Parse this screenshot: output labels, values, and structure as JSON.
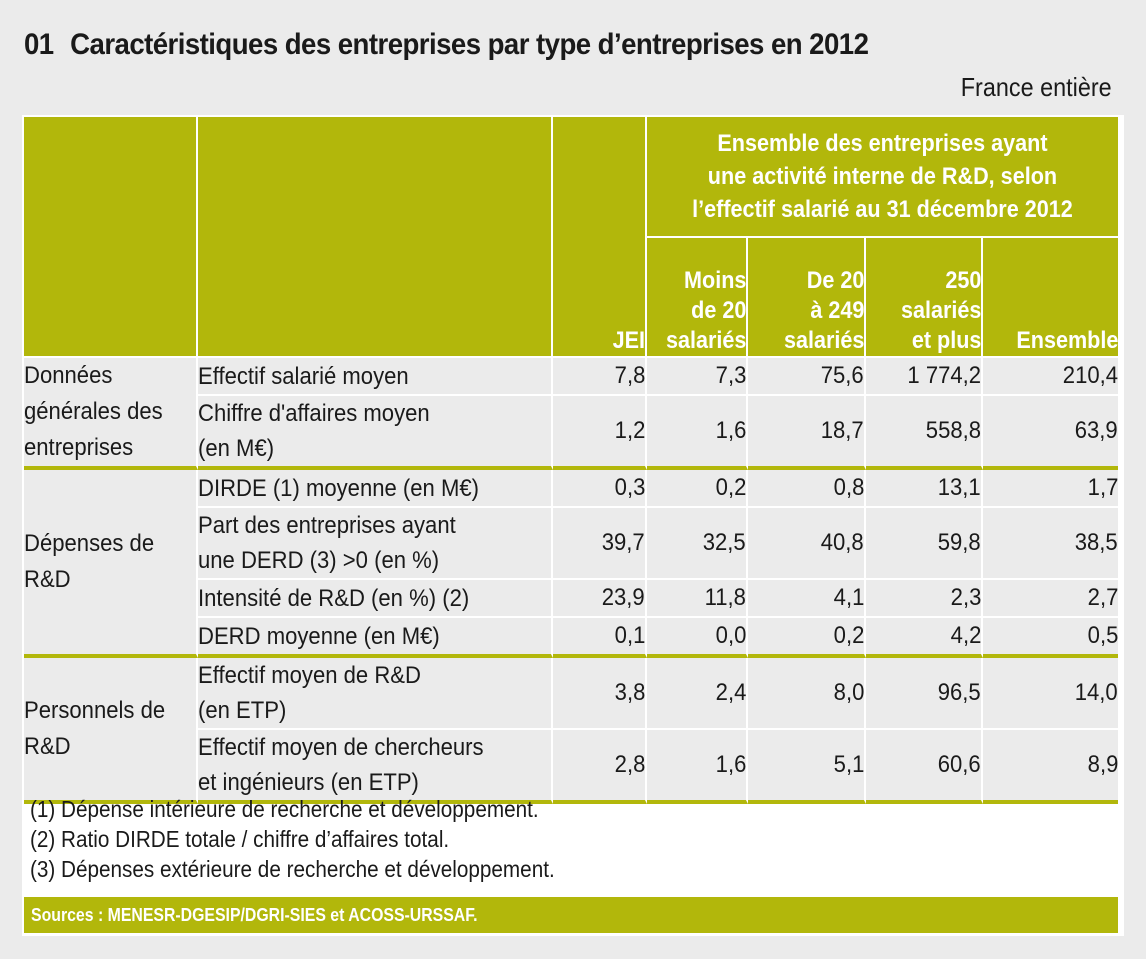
{
  "header": {
    "number": "01",
    "title": "Caractéristiques des entreprises par type d’entreprises en 2012",
    "scope": "France entière"
  },
  "colors": {
    "accent": "#b2b70b",
    "background": "#ebebeb",
    "cell": "#ebebeb"
  },
  "table": {
    "group_header": [
      "Ensemble des entreprises ayant",
      "une activité interne de R&D, selon",
      "l’effectif salarié au 31 décembre 2012"
    ],
    "columns": [
      {
        "lines": [
          "JEI"
        ]
      },
      {
        "lines": [
          "Moins",
          "de 20",
          "salariés"
        ]
      },
      {
        "lines": [
          "De 20",
          "à 249",
          "salariés"
        ]
      },
      {
        "lines": [
          "250",
          "salariés",
          "et plus"
        ]
      },
      {
        "lines": [
          "Ensemble"
        ]
      }
    ],
    "groups": [
      {
        "category": [
          "Données",
          "générales des",
          "entreprises"
        ],
        "rows": [
          {
            "label": [
              "Effectif salarié moyen"
            ],
            "values": [
              "7,8",
              "7,3",
              "75,6",
              "1 774,2",
              "210,4"
            ]
          },
          {
            "label": [
              "Chiffre d'affaires moyen",
              "(en M€)"
            ],
            "values": [
              "1,2",
              "1,6",
              "18,7",
              "558,8",
              "63,9"
            ]
          }
        ]
      },
      {
        "category": [
          "Dépenses de",
          "R&D"
        ],
        "rows": [
          {
            "label": [
              "DIRDE (1) moyenne (en M€)"
            ],
            "values": [
              "0,3",
              "0,2",
              "0,8",
              "13,1",
              "1,7"
            ]
          },
          {
            "label": [
              "Part des entreprises ayant",
              "une DERD (3)  >0 (en %)"
            ],
            "values": [
              "39,7",
              "32,5",
              "40,8",
              "59,8",
              "38,5"
            ]
          },
          {
            "label": [
              "Intensité de R&D (en %) (2)"
            ],
            "values": [
              "23,9",
              "11,8",
              "4,1",
              "2,3",
              "2,7"
            ]
          },
          {
            "label": [
              "DERD moyenne (en M€)"
            ],
            "values": [
              "0,1",
              "0,0",
              "0,2",
              "4,2",
              "0,5"
            ]
          }
        ]
      },
      {
        "category": [
          "Personnels de",
          "R&D"
        ],
        "rows": [
          {
            "label": [
              "Effectif moyen de R&D",
              "(en ETP)"
            ],
            "values": [
              "3,8",
              "2,4",
              "8,0",
              "96,5",
              "14,0"
            ]
          },
          {
            "label": [
              "Effectif moyen de chercheurs",
              "et ingénieurs (en ETP)"
            ],
            "values": [
              "2,8",
              "1,6",
              "5,1",
              "60,6",
              "8,9"
            ]
          }
        ]
      }
    ]
  },
  "footnotes": [
    "(1) Dépense intérieure de recherche et développement.",
    "(2) Ratio DIRDE totale / chiffre d’affaires total.",
    "(3) Dépenses extérieure de recherche et développement."
  ],
  "sources": "Sources : MENESR-DGESIP/DGRI-SIES et ACOSS-URSSAF."
}
